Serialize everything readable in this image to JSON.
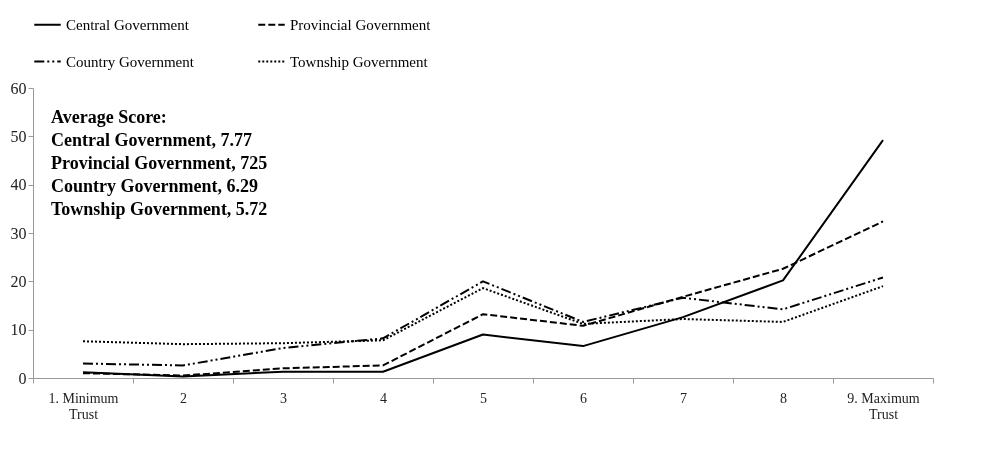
{
  "chart_data": {
    "type": "line",
    "categories": [
      "1. Minimum Trust",
      "2",
      "3",
      "4",
      "5",
      "6",
      "7",
      "8",
      "9. Maximum Trust"
    ],
    "series": [
      {
        "name": "Central Government",
        "color": "#000000",
        "line_style": "solid",
        "values": [
          1.2,
          0.3,
          1.3,
          1.3,
          9.0,
          6.6,
          12.6,
          20.2,
          49.2
        ]
      },
      {
        "name": "Provincial Government",
        "color": "#000000",
        "line_style": "dashed",
        "values": [
          1.0,
          0.5,
          2.0,
          2.6,
          13.2,
          10.8,
          16.8,
          22.6,
          32.4
        ]
      },
      {
        "name": "Country Government",
        "color": "#000000",
        "line_style": "dashdot",
        "values": [
          3.0,
          2.6,
          6.2,
          8.2,
          20.0,
          11.6,
          16.6,
          14.2,
          20.8
        ]
      },
      {
        "name": "Township Government",
        "color": "#000000",
        "line_style": "dotted",
        "values": [
          7.6,
          7.0,
          7.2,
          7.8,
          18.6,
          11.2,
          12.2,
          11.6,
          19.0
        ]
      }
    ],
    "ylim": [
      0,
      60
    ],
    "yticks": [
      0,
      10,
      20,
      30,
      40,
      50,
      60
    ],
    "grid": false,
    "legend": "top",
    "annotations": [
      "Average Score:",
      "Central Government, 7.77",
      "Provincial Government, 725",
      "Country Government, 6.29",
      "Township Government, 5.72"
    ]
  }
}
